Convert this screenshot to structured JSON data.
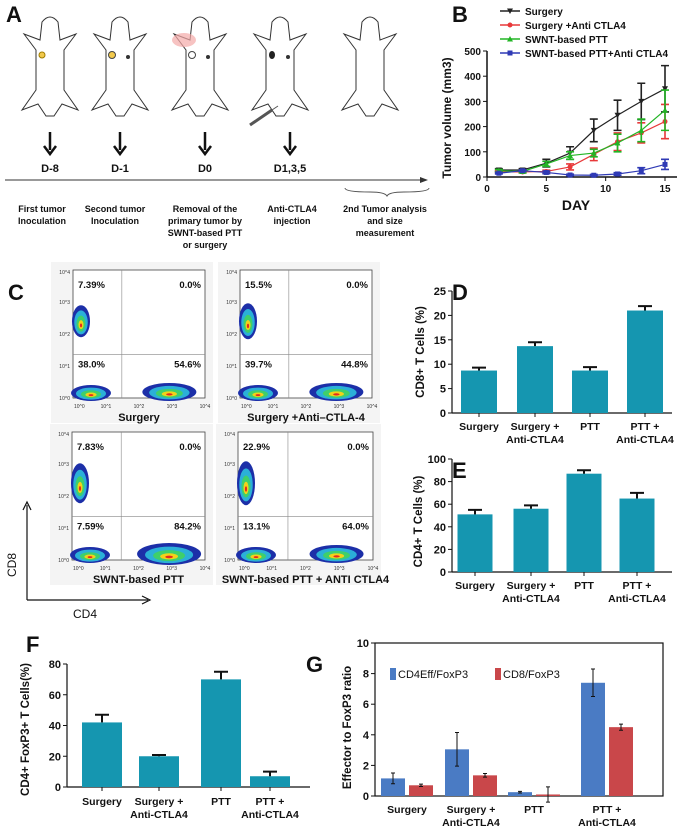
{
  "panel_letters": {
    "A": "A",
    "B": "B",
    "C": "C",
    "D": "D",
    "E": "E",
    "F": "F",
    "G": "G"
  },
  "timeline": {
    "days": [
      "D-8",
      "D-1",
      "D0",
      "D1,3,5"
    ],
    "steps": [
      [
        "First tumor",
        "Inoculation"
      ],
      [
        "Second tumor",
        "Inoculation"
      ],
      [
        "Removal of the",
        "primary tumor by",
        "SWNT-based PTT",
        "or surgery"
      ],
      [
        "Anti-CTLA4",
        "injection"
      ],
      [
        "2nd Tumor analysis",
        "and size",
        "measurement"
      ]
    ]
  },
  "flow": {
    "x_axis_label": "CD4",
    "y_axis_label": "CD8",
    "tick_labels": [
      "10^0",
      "10^1",
      "10^2",
      "10^3",
      "10^4"
    ],
    "panels": [
      {
        "title": "Surgery",
        "ul": "7.39%",
        "ur": "0.0%",
        "ll": "38.0%",
        "lr": "54.6%"
      },
      {
        "title": "Surgery +Anti–CTLA-4",
        "ul": "15.5%",
        "ur": "0.0%",
        "ll": "39.7%",
        "lr": "44.8%"
      },
      {
        "title": "SWNT-based PTT",
        "ul": "7.83%",
        "ur": "0.0%",
        "ll": "7.59%",
        "lr": "84.2%"
      },
      {
        "title": "SWNT-based PTT + ANTI CTLA4",
        "ul": "22.9%",
        "ur": "0.0%",
        "ll": "13.1%",
        "lr": "64.0%"
      }
    ]
  },
  "chart_data": [
    {
      "id": "B",
      "type": "line",
      "xlabel": "DAY",
      "ylabel": "Tumor volume (mm3)",
      "xlim": [
        0,
        15
      ],
      "ylim": [
        0,
        500
      ],
      "xticks": [
        0,
        5,
        10,
        15
      ],
      "yticks": [
        0,
        100,
        200,
        300,
        400,
        500
      ],
      "legend_placement": "top",
      "x": [
        1,
        3,
        5,
        7,
        9,
        11,
        13,
        15
      ],
      "series": [
        {
          "name": "Surgery",
          "color": "#222222",
          "marker": "triangle-down",
          "values": [
            28,
            28,
            55,
            95,
            185,
            245,
            300,
            350
          ],
          "errors": [
            5,
            5,
            15,
            25,
            45,
            60,
            72,
            92
          ]
        },
        {
          "name": "Surgery +Anti CTLA4",
          "color": "#e8393a",
          "marker": "circle",
          "values": [
            20,
            20,
            22,
            40,
            90,
            140,
            175,
            220
          ],
          "errors": [
            4,
            4,
            5,
            12,
            25,
            35,
            40,
            68
          ]
        },
        {
          "name": "SWNT-based PTT",
          "color": "#22b525",
          "marker": "triangle-up",
          "values": [
            25,
            22,
            52,
            85,
            95,
            135,
            185,
            265
          ],
          "errors": [
            5,
            5,
            10,
            15,
            15,
            35,
            45,
            80
          ]
        },
        {
          "name": "SWNT-based PTT+Anti CTLA4",
          "color": "#2f3ab5",
          "marker": "square",
          "values": [
            15,
            25,
            18,
            8,
            7,
            12,
            25,
            50
          ],
          "errors": [
            3,
            3,
            5,
            3,
            3,
            5,
            12,
            20
          ]
        }
      ]
    },
    {
      "id": "D",
      "type": "bar",
      "ylabel": "CD8+ T Cells (%)",
      "ylim": [
        0,
        25
      ],
      "yticks": [
        0,
        5,
        10,
        15,
        20,
        25
      ],
      "categories": [
        [
          "Surgery"
        ],
        [
          "Surgery +",
          "Anti-CTLA4"
        ],
        [
          "PTT"
        ],
        [
          "PTT +",
          "Anti-CTLA4"
        ]
      ],
      "series": [
        {
          "color": "#1596b0",
          "values": [
            8.7,
            13.7,
            8.7,
            21.0
          ],
          "errors": [
            0.6,
            0.8,
            0.7,
            0.9
          ]
        }
      ]
    },
    {
      "id": "E",
      "type": "bar",
      "ylabel": "CD4+ T Cells (%)",
      "ylim": [
        0,
        100
      ],
      "yticks": [
        0,
        20,
        40,
        60,
        80,
        100
      ],
      "categories": [
        [
          "Surgery"
        ],
        [
          "Surgery +",
          "Anti-CTLA4"
        ],
        [
          "PTT"
        ],
        [
          "PTT +",
          "Anti-CTLA4"
        ]
      ],
      "series": [
        {
          "color": "#1596b0",
          "values": [
            51,
            56,
            87,
            65
          ],
          "errors": [
            4,
            3,
            3,
            5
          ]
        }
      ]
    },
    {
      "id": "F",
      "type": "bar",
      "ylabel": "CD4+ FoxP3+ T Cells(%)",
      "ylim": [
        0,
        80
      ],
      "yticks": [
        0,
        20,
        40,
        60,
        80
      ],
      "categories": [
        [
          "Surgery"
        ],
        [
          "Surgery +",
          "Anti-CTLA4"
        ],
        [
          "PTT"
        ],
        [
          "PTT +",
          "Anti-CTLA4"
        ]
      ],
      "series": [
        {
          "color": "#1596b0",
          "values": [
            42,
            20,
            70,
            7
          ],
          "errors": [
            5,
            0.8,
            5,
            3
          ]
        }
      ]
    },
    {
      "id": "G",
      "type": "bar",
      "ylabel": "Effector to FoxP3 ratio",
      "ylim": [
        0,
        10
      ],
      "yticks": [
        0,
        2,
        4,
        6,
        8,
        10
      ],
      "legend_placement": "top-left",
      "categories": [
        [
          "Surgery"
        ],
        [
          "Surgery +",
          "Anti-CTLA4"
        ],
        [
          "PTT"
        ],
        [
          "PTT +",
          "Anti-CTLA4"
        ]
      ],
      "series": [
        {
          "name": "CD4Eff/FoxP3",
          "color": "#4a7bc4",
          "values": [
            1.15,
            3.05,
            0.25,
            7.4
          ],
          "errors": [
            0.35,
            1.1,
            0.05,
            0.9
          ]
        },
        {
          "name": "CD8/FoxP3",
          "color": "#c9474a",
          "values": [
            0.7,
            1.35,
            0.1,
            4.5
          ],
          "errors": [
            0.08,
            0.12,
            0.5,
            0.2
          ]
        }
      ]
    }
  ]
}
